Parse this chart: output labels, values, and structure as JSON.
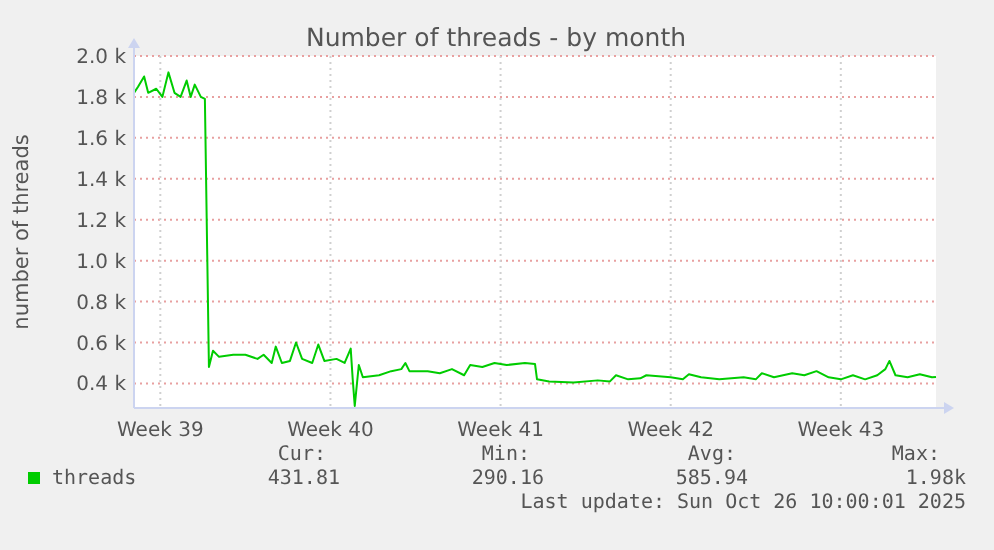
{
  "chart_data": {
    "type": "line",
    "title": "Number of threads - by month",
    "ylabel": "number of threads",
    "x": [
      "2025-09-23T10:00",
      "2025-09-23T14:00",
      "2025-09-23T20:00",
      "2025-09-24T00:00",
      "2025-09-24T08:00",
      "2025-09-24T14:00",
      "2025-09-24T20:00",
      "2025-09-25T02:00",
      "2025-09-25T08:00",
      "2025-09-25T14:00",
      "2025-09-25T18:00",
      "2025-09-25T22:00",
      "2025-09-26T04:00",
      "2025-09-26T08:00",
      "2025-09-26T12:00",
      "2025-09-26T16:00",
      "2025-09-26T22:00",
      "2025-09-27T12:00",
      "2025-09-28T00:00",
      "2025-09-28T12:00",
      "2025-09-28T18:00",
      "2025-09-29T02:00",
      "2025-09-29T06:00",
      "2025-09-29T12:00",
      "2025-09-29T20:00",
      "2025-09-30T02:00",
      "2025-09-30T08:00",
      "2025-09-30T18:00",
      "2025-10-01T00:00",
      "2025-10-01T06:00",
      "2025-10-01T18:00",
      "2025-10-02T02:00",
      "2025-10-02T08:00",
      "2025-10-02T10:00",
      "2025-10-02T12:00",
      "2025-10-02T16:00",
      "2025-10-02T20:00",
      "2025-10-03T12:00",
      "2025-10-04T00:00",
      "2025-10-04T10:00",
      "2025-10-04T14:00",
      "2025-10-04T18:00",
      "2025-10-05T12:00",
      "2025-10-06T00:00",
      "2025-10-06T12:00",
      "2025-10-07T00:00",
      "2025-10-07T06:00",
      "2025-10-07T18:00",
      "2025-10-08T06:00",
      "2025-10-08T18:00",
      "2025-10-09T12:00",
      "2025-10-09T22:00",
      "2025-10-10T00:00",
      "2025-10-10T12:00",
      "2025-10-11T12:00",
      "2025-10-12T12:00",
      "2025-10-13T00:00",
      "2025-10-13T06:00",
      "2025-10-13T18:00",
      "2025-10-14T06:00",
      "2025-10-14T12:00",
      "2025-10-15T12:00",
      "2025-10-16T00:00",
      "2025-10-16T06:00",
      "2025-10-16T18:00",
      "2025-10-17T12:00",
      "2025-10-18T12:00",
      "2025-10-19T00:00",
      "2025-10-19T06:00",
      "2025-10-19T18:00",
      "2025-10-20T12:00",
      "2025-10-21T00:00",
      "2025-10-21T12:00",
      "2025-10-22T00:00",
      "2025-10-22T12:00",
      "2025-10-23T00:00",
      "2025-10-23T12:00",
      "2025-10-24T00:00",
      "2025-10-24T08:00",
      "2025-10-24T12:00",
      "2025-10-24T18:00",
      "2025-10-25T06:00",
      "2025-10-25T18:00",
      "2025-10-26T06:00",
      "2025-10-26T10:00"
    ],
    "series": [
      {
        "name": "threads",
        "color": "#00cc00",
        "values": [
          1820,
          1850,
          1900,
          1820,
          1840,
          1800,
          1920,
          1820,
          1800,
          1880,
          1800,
          1860,
          1800,
          1790,
          480,
          560,
          530,
          540,
          540,
          520,
          540,
          500,
          580,
          500,
          510,
          600,
          520,
          500,
          590,
          510,
          520,
          500,
          570,
          420,
          290.16,
          490,
          430,
          440,
          460,
          470,
          500,
          460,
          460,
          450,
          470,
          440,
          490,
          480,
          500,
          490,
          500,
          495,
          420,
          410,
          405,
          415,
          410,
          440,
          420,
          425,
          440,
          430,
          420,
          445,
          430,
          420,
          430,
          420,
          450,
          430,
          450,
          440,
          460,
          430,
          420,
          440,
          420,
          440,
          470,
          510,
          440,
          430,
          445,
          430,
          431.81
        ]
      }
    ],
    "xlim": [
      "2025-09-23T10:00",
      "2025-10-26T10:00"
    ],
    "xticks": [
      {
        "value": "2025-09-24T12:00",
        "label": "Week 39"
      },
      {
        "value": "2025-10-01T12:00",
        "label": "Week 40"
      },
      {
        "value": "2025-10-08T12:00",
        "label": "Week 41"
      },
      {
        "value": "2025-10-15T12:00",
        "label": "Week 42"
      },
      {
        "value": "2025-10-22T12:00",
        "label": "Week 43"
      }
    ],
    "ylim": [
      280,
      2000
    ],
    "yticks": [
      {
        "value": 400,
        "label": "0.4 k"
      },
      {
        "value": 600,
        "label": "0.6 k"
      },
      {
        "value": 800,
        "label": "0.8 k"
      },
      {
        "value": 1000,
        "label": "1.0 k"
      },
      {
        "value": 1200,
        "label": "1.2 k"
      },
      {
        "value": 1400,
        "label": "1.4 k"
      },
      {
        "value": 1600,
        "label": "1.6 k"
      },
      {
        "value": 1800,
        "label": "1.8 k"
      },
      {
        "value": 2000,
        "label": "2.0 k"
      }
    ],
    "grid": true,
    "legend": "bottom left",
    "line_style": "solid",
    "marker": "none",
    "annotations": [
      "Cur:",
      "Min:",
      "Avg:",
      "Max:",
      "431.81",
      "290.16",
      "585.94",
      "1.98k",
      "Last update: Sun Oct 26 10:00:01 2025"
    ]
  }
}
